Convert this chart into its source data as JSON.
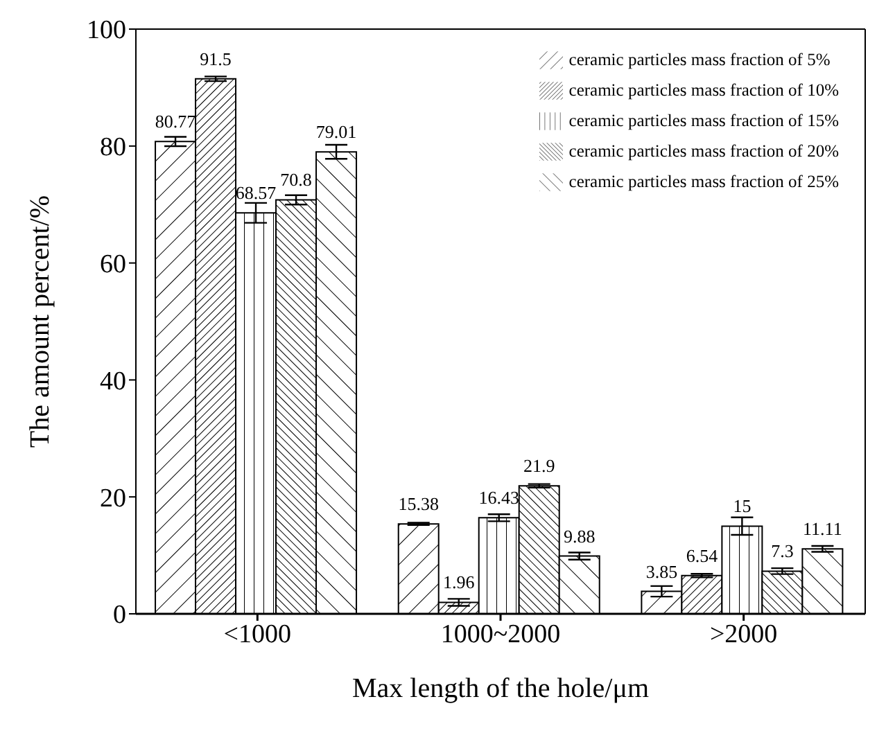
{
  "chart_data": {
    "type": "bar",
    "xlabel": "Max length of the hole/μm",
    "ylabel": "The amount percent/%",
    "categories": [
      "<1000",
      "1000~2000",
      ">2000"
    ],
    "series": [
      {
        "name": "ceramic particles mass fraction of 5%",
        "color": "#000000",
        "values": [
          80.77,
          15.38,
          3.85
        ],
        "errors": [
          0.8,
          0.2,
          0.9
        ]
      },
      {
        "name": "ceramic particles mass fraction of 10%",
        "color": "#000000",
        "values": [
          91.5,
          1.96,
          6.54
        ],
        "errors": [
          0.4,
          0.6,
          0.3
        ]
      },
      {
        "name": "ceramic particles mass fraction of 15%",
        "color": "#000000",
        "values": [
          68.57,
          16.43,
          15
        ],
        "errors": [
          1.7,
          0.6,
          1.5
        ]
      },
      {
        "name": "ceramic particles mass fraction of 20%",
        "color": "#000000",
        "values": [
          70.8,
          21.9,
          7.3
        ],
        "errors": [
          0.8,
          0.3,
          0.5
        ]
      },
      {
        "name": "ceramic particles mass fraction of 25%",
        "color": "#000000",
        "values": [
          79.01,
          9.88,
          11.11
        ],
        "errors": [
          1.2,
          0.6,
          0.5
        ]
      }
    ],
    "ylim": [
      0,
      100
    ],
    "yticks": [
      0,
      20,
      40,
      60,
      80,
      100
    ],
    "grid": false,
    "legend": "top right",
    "data_labels": true
  }
}
